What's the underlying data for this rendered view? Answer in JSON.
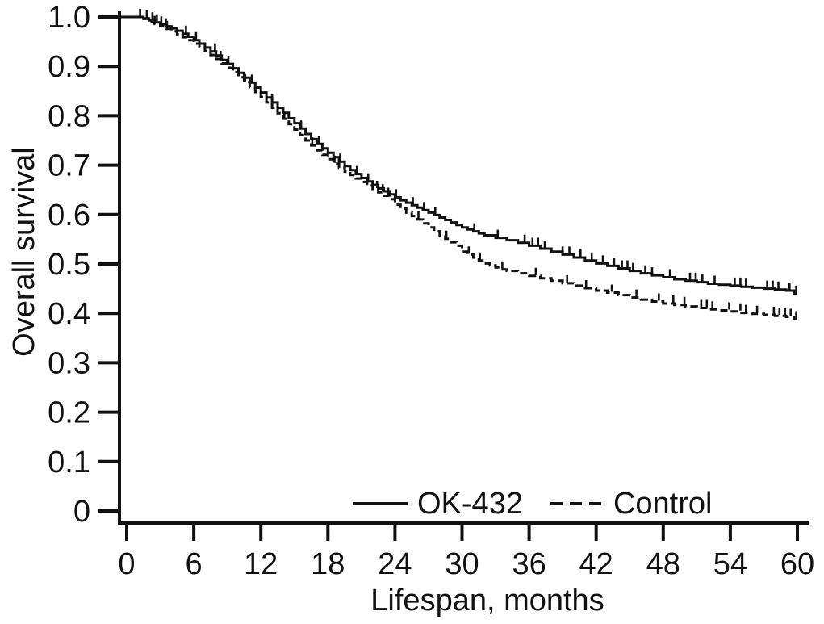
{
  "figure": {
    "background_color": "#ffffff",
    "line_color": "#111111"
  },
  "chart_data": {
    "type": "line",
    "subtype": "kaplan-meier-step-curve",
    "title": "",
    "xlabel": "Lifespan, months",
    "ylabel": "Overall survival",
    "xlim": [
      0,
      60
    ],
    "ylim": [
      0,
      1.0
    ],
    "grid": false,
    "legend_position": "bottom-inside",
    "xticks": [
      0,
      6,
      12,
      18,
      24,
      30,
      36,
      42,
      48,
      54,
      60
    ],
    "xtick_labels": [
      "0",
      "6",
      "12",
      "18",
      "24",
      "30",
      "36",
      "42",
      "48",
      "54",
      "60"
    ],
    "yticks": [
      0,
      0.1,
      0.2,
      0.3,
      0.4,
      0.5,
      0.6,
      0.7,
      0.8,
      0.9,
      1.0
    ],
    "ytick_labels": [
      "0",
      "0.1",
      "0.2",
      "0.3",
      "0.4",
      "0.5",
      "0.6",
      "0.7",
      "0.8",
      "0.9",
      "1.0"
    ],
    "series": [
      {
        "name": "OK-432",
        "line_style": "solid",
        "color": "#111111",
        "points": [
          [
            0,
            1.0
          ],
          [
            1.5,
            0.997
          ],
          [
            2,
            0.993
          ],
          [
            2.5,
            0.989
          ],
          [
            3,
            0.985
          ],
          [
            3.5,
            0.981
          ],
          [
            4,
            0.977
          ],
          [
            4.5,
            0.972
          ],
          [
            5,
            0.966
          ],
          [
            5.5,
            0.96
          ],
          [
            6,
            0.953
          ],
          [
            6.5,
            0.946
          ],
          [
            7,
            0.938
          ],
          [
            7.5,
            0.93
          ],
          [
            8,
            0.922
          ],
          [
            8.5,
            0.913
          ],
          [
            9,
            0.905
          ],
          [
            9.5,
            0.896
          ],
          [
            10,
            0.887
          ],
          [
            10.5,
            0.877
          ],
          [
            11,
            0.867
          ],
          [
            11.5,
            0.857
          ],
          [
            12,
            0.847
          ],
          [
            12.5,
            0.837
          ],
          [
            13,
            0.827
          ],
          [
            13.5,
            0.816
          ],
          [
            14,
            0.806
          ],
          [
            14.5,
            0.795
          ],
          [
            15,
            0.785
          ],
          [
            15.5,
            0.774
          ],
          [
            16,
            0.763
          ],
          [
            16.5,
            0.753
          ],
          [
            17,
            0.743
          ],
          [
            17.5,
            0.734
          ],
          [
            18,
            0.725
          ],
          [
            18.5,
            0.716
          ],
          [
            19,
            0.707
          ],
          [
            19.5,
            0.698
          ],
          [
            20,
            0.69
          ],
          [
            20.5,
            0.682
          ],
          [
            21,
            0.674
          ],
          [
            21.5,
            0.667
          ],
          [
            22,
            0.66
          ],
          [
            22.5,
            0.653
          ],
          [
            23,
            0.647
          ],
          [
            23.5,
            0.641
          ],
          [
            24,
            0.635
          ],
          [
            24.5,
            0.629
          ],
          [
            25,
            0.624
          ],
          [
            25.5,
            0.619
          ],
          [
            26,
            0.614
          ],
          [
            26.5,
            0.609
          ],
          [
            27,
            0.604
          ],
          [
            27.5,
            0.599
          ],
          [
            28,
            0.594
          ],
          [
            28.5,
            0.589
          ],
          [
            29,
            0.584
          ],
          [
            29.5,
            0.579
          ],
          [
            30,
            0.574
          ],
          [
            30.5,
            0.57
          ],
          [
            31,
            0.566
          ],
          [
            31.5,
            0.562
          ],
          [
            32,
            0.558
          ],
          [
            33,
            0.553
          ],
          [
            34,
            0.548
          ],
          [
            35,
            0.543
          ],
          [
            36,
            0.537
          ],
          [
            37,
            0.531
          ],
          [
            38,
            0.525
          ],
          [
            39,
            0.519
          ],
          [
            40,
            0.513
          ],
          [
            41,
            0.507
          ],
          [
            42,
            0.501
          ],
          [
            43,
            0.496
          ],
          [
            44,
            0.491
          ],
          [
            45,
            0.486
          ],
          [
            46,
            0.481
          ],
          [
            47,
            0.477
          ],
          [
            48,
            0.473
          ],
          [
            49,
            0.469
          ],
          [
            50,
            0.466
          ],
          [
            51,
            0.463
          ],
          [
            52,
            0.46
          ],
          [
            53,
            0.458
          ],
          [
            54,
            0.456
          ],
          [
            55,
            0.454
          ],
          [
            56,
            0.452
          ],
          [
            57,
            0.45
          ],
          [
            58,
            0.448
          ],
          [
            59,
            0.446
          ],
          [
            59.7,
            0.44
          ],
          [
            60,
            0.44
          ]
        ],
        "censor_marks": [
          1.2,
          1.8,
          2.3,
          2.7,
          3.1,
          3.5,
          5.3,
          6.2,
          7.9,
          9.1,
          11.2,
          13.0,
          15.6,
          17.2,
          19.1,
          20.6,
          21.6,
          24.1,
          25.6,
          26.6,
          27.6,
          31.1,
          33.2,
          35.6,
          36.3,
          36.8,
          37.4,
          39.0,
          39.6,
          40.6,
          41.6,
          42.6,
          43.6,
          44.3,
          44.8,
          45.3,
          46.4,
          47.0,
          48.6,
          50.4,
          50.9,
          51.5,
          52.6,
          54.4,
          54.9,
          55.4,
          57.3,
          57.8,
          58.3,
          59.3,
          59.9
        ]
      },
      {
        "name": "Control",
        "line_style": "dashed",
        "color": "#111111",
        "points": [
          [
            0,
            1.0
          ],
          [
            1.5,
            0.996
          ],
          [
            2,
            0.991
          ],
          [
            2.5,
            0.986
          ],
          [
            3,
            0.981
          ],
          [
            3.5,
            0.976
          ],
          [
            4,
            0.971
          ],
          [
            4.5,
            0.965
          ],
          [
            5,
            0.959
          ],
          [
            5.5,
            0.953
          ],
          [
            6,
            0.946
          ],
          [
            6.5,
            0.939
          ],
          [
            7,
            0.931
          ],
          [
            7.5,
            0.923
          ],
          [
            8,
            0.915
          ],
          [
            8.5,
            0.906
          ],
          [
            9,
            0.897
          ],
          [
            9.5,
            0.888
          ],
          [
            10,
            0.878
          ],
          [
            10.5,
            0.868
          ],
          [
            11,
            0.858
          ],
          [
            11.5,
            0.848
          ],
          [
            12,
            0.838
          ],
          [
            12.5,
            0.827
          ],
          [
            13,
            0.816
          ],
          [
            13.5,
            0.805
          ],
          [
            14,
            0.794
          ],
          [
            14.5,
            0.783
          ],
          [
            15,
            0.772
          ],
          [
            15.5,
            0.761
          ],
          [
            16,
            0.75
          ],
          [
            16.5,
            0.74
          ],
          [
            17,
            0.73
          ],
          [
            17.5,
            0.721
          ],
          [
            18,
            0.712
          ],
          [
            18.5,
            0.703
          ],
          [
            19,
            0.695
          ],
          [
            19.5,
            0.687
          ],
          [
            20,
            0.68
          ],
          [
            20.5,
            0.673
          ],
          [
            21,
            0.666
          ],
          [
            21.5,
            0.659
          ],
          [
            22,
            0.652
          ],
          [
            22.5,
            0.645
          ],
          [
            23,
            0.638
          ],
          [
            23.5,
            0.631
          ],
          [
            24,
            0.62
          ],
          [
            24.5,
            0.612
          ],
          [
            25,
            0.604
          ],
          [
            25.5,
            0.597
          ],
          [
            26,
            0.59
          ],
          [
            26.5,
            0.582
          ],
          [
            27,
            0.574
          ],
          [
            27.5,
            0.566
          ],
          [
            28,
            0.558
          ],
          [
            28.5,
            0.551
          ],
          [
            29,
            0.544
          ],
          [
            29.5,
            0.537
          ],
          [
            30,
            0.525
          ],
          [
            30.5,
            0.519
          ],
          [
            31,
            0.513
          ],
          [
            31.5,
            0.507
          ],
          [
            32,
            0.501
          ],
          [
            32.5,
            0.497
          ],
          [
            33,
            0.493
          ],
          [
            33.5,
            0.489
          ],
          [
            34,
            0.486
          ],
          [
            35,
            0.481
          ],
          [
            36,
            0.476
          ],
          [
            37,
            0.471
          ],
          [
            38,
            0.466
          ],
          [
            39,
            0.461
          ],
          [
            40,
            0.456
          ],
          [
            41,
            0.451
          ],
          [
            42,
            0.446
          ],
          [
            43,
            0.442
          ],
          [
            44,
            0.437
          ],
          [
            45,
            0.432
          ],
          [
            46,
            0.428
          ],
          [
            47,
            0.424
          ],
          [
            48,
            0.42
          ],
          [
            49,
            0.417
          ],
          [
            50,
            0.414
          ],
          [
            51,
            0.411
          ],
          [
            52,
            0.408
          ],
          [
            53,
            0.406
          ],
          [
            54,
            0.404
          ],
          [
            55,
            0.401
          ],
          [
            56,
            0.399
          ],
          [
            57,
            0.397
          ],
          [
            58,
            0.395
          ],
          [
            59,
            0.393
          ],
          [
            59.7,
            0.388
          ],
          [
            60,
            0.388
          ]
        ],
        "censor_marks": [
          2.5,
          3.6,
          8.4,
          10.6,
          14.1,
          16.6,
          18.6,
          22.4,
          22.9,
          23.4,
          26.1,
          28.6,
          30.6,
          31.6,
          33.6,
          36.6,
          39.4,
          41.1,
          43.4,
          45.6,
          47.6,
          48.9,
          49.9,
          51.4,
          51.9,
          52.4,
          53.9,
          54.9,
          55.4,
          56.4,
          57.9,
          58.4,
          58.9,
          59.4,
          59.9
        ]
      }
    ]
  }
}
